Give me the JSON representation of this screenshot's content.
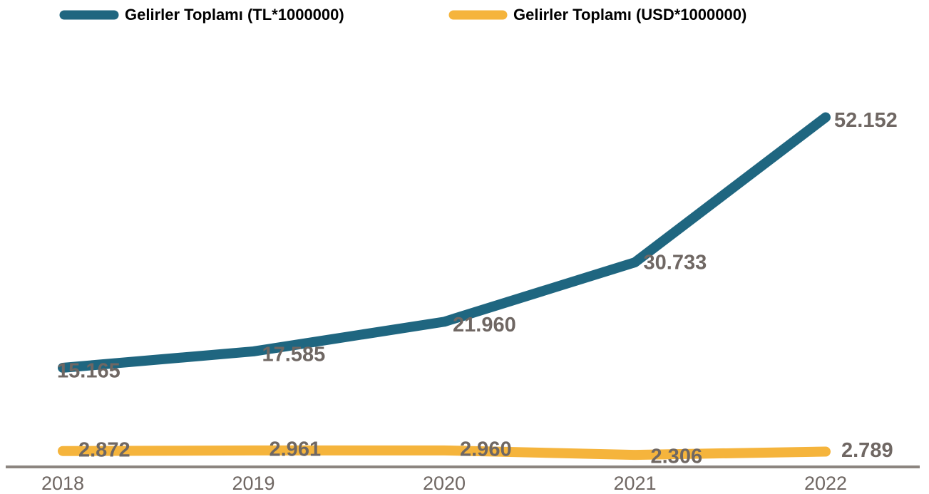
{
  "chart_data": {
    "type": "line",
    "categories": [
      "2018",
      "2019",
      "2020",
      "2021",
      "2022"
    ],
    "series": [
      {
        "name": "Gelirler Toplamı (TL*1000000)",
        "color": "#1f6680",
        "values": [
          15.165,
          17.585,
          21.96,
          30.733,
          52.152
        ],
        "value_labels": [
          "15.165",
          "17.585",
          "21.960",
          "30.733",
          "52.152"
        ]
      },
      {
        "name": "Gelirler Toplamı (USD*1000000)",
        "color": "#f5b43c",
        "values": [
          2.872,
          2.961,
          2.96,
          2.306,
          2.789
        ],
        "value_labels": [
          "2.872",
          "2.961",
          "2.960",
          "2.306",
          "2.789"
        ]
      }
    ]
  }
}
